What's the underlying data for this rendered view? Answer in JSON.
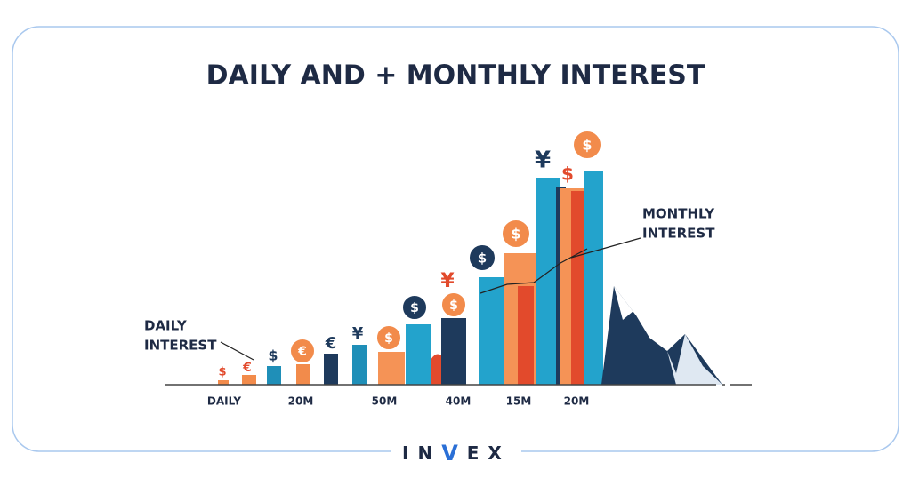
{
  "header": {
    "title": "DAILY AND + MONTHLY INTEREST"
  },
  "annotations": [
    {
      "lines": [
        "DAILY",
        "INTEREST"
      ]
    },
    {
      "lines": [
        "MONTHLY",
        "INTEREST"
      ]
    }
  ],
  "axis_labels": [
    "DAILY",
    "20M",
    "50M",
    "40M",
    "15M",
    "20M"
  ],
  "symbols": [
    "$",
    "€",
    "$",
    "€",
    "€",
    "¥",
    "$",
    "$",
    "¥",
    "$",
    "$",
    "$",
    "¥",
    "$",
    "$"
  ],
  "logo": {
    "left": "IN",
    "mark": "V",
    "right": "EX"
  }
}
